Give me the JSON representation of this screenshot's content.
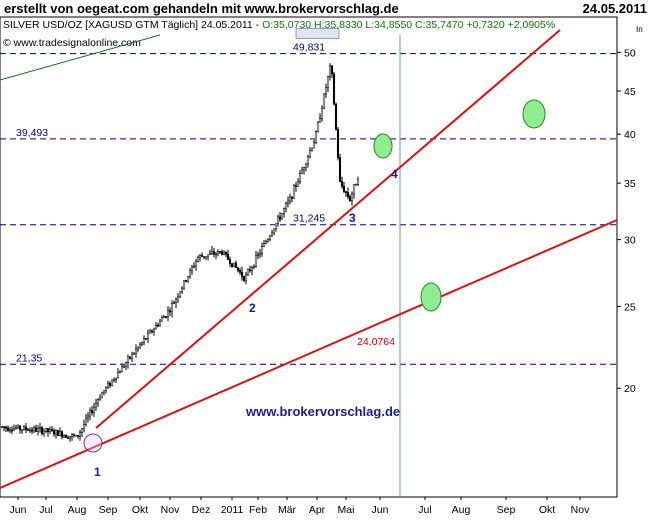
{
  "header": {
    "title": "erstellt von oegeat.com gehandeln mit www.brokervorschlag.de",
    "date": "24.05.2011",
    "info_prefix": "SILVER USD/OZ [XAGUSD GTM  Täglich] 24.05.2011 - ",
    "info_values": "O:35,0730 H:35,8330 L:34,8550 C:35,7470 +0,7320 +2,0905%",
    "source": "© www.tradesignalonline.com",
    "corner_mark": "In"
  },
  "colors": {
    "candle_up": "#ffffff",
    "candle_down": "#000000",
    "trendline": "#e01010",
    "dashed_level": "#00008b",
    "vertical_marker": "#5f9ea0",
    "ellipse_fill": "#90ee90",
    "ellipse_stroke": "#228b22",
    "label_blue": "#1a1aa0",
    "info_green": "#008000"
  },
  "chart_data": {
    "type": "candlestick",
    "y_scale": "log",
    "ylim": [
      15.4,
      52
    ],
    "y_ticks": [
      20,
      25,
      30,
      35,
      40,
      45,
      50
    ],
    "y_tick_labels": [
      "20",
      "25",
      "30",
      "35",
      "40",
      "45",
      "50"
    ],
    "x_labels": [
      "Jun",
      "Jul",
      "Aug",
      "Sep",
      "Okt",
      "Nov",
      "Dez",
      "2011",
      "Feb",
      "Mär",
      "Apr",
      "Mai",
      "Jun",
      "Jul",
      "Aug",
      "Sep",
      "Okt",
      "Nov"
    ],
    "price_anchors": [
      [
        "Jun",
        18.0
      ],
      [
        "Jul",
        17.8
      ],
      [
        "Aug",
        17.5
      ],
      [
        "Sep",
        19.6
      ],
      [
        "Okt",
        22.5
      ],
      [
        "Nov",
        24.8
      ],
      [
        "Dez",
        28.6
      ],
      [
        "2011",
        29.0
      ],
      [
        "Feb",
        27.0
      ],
      [
        "Mär",
        33.5
      ],
      [
        "Apr",
        39.5
      ],
      [
        "Apr-end",
        48.5
      ],
      [
        "Mai-early",
        35.0
      ],
      [
        "Mai-mid",
        33.5
      ],
      [
        "Mai-24",
        35.7
      ]
    ],
    "levels": [
      {
        "value": 49.831,
        "label": "49,831"
      },
      {
        "value": 39.493,
        "label": "39,493"
      },
      {
        "value": 31.245,
        "label": "31,245"
      },
      {
        "value": 21.35,
        "label": "21,35"
      }
    ],
    "lower_trendline_label": "24,0764",
    "point_labels": [
      "1",
      "2",
      "3",
      "4"
    ],
    "watermark": "www.brokervorschlag.de"
  }
}
